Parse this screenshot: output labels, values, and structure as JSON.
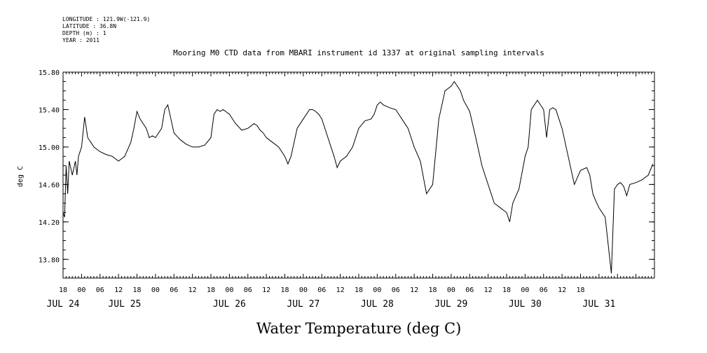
{
  "header": {
    "longitude": "LONGITUDE : 121.9W(-121.9)",
    "latitude": "LATITUDE : 36.8N",
    "depth": "DEPTH (m) : 1",
    "year": "YEAR : 2011"
  },
  "chart_data": {
    "type": "line",
    "title": "Mooring M0 CTD data from MBARI instrument id 1337 at original sampling intervals",
    "xlabel": "Water Temperature (deg C)",
    "ylabel": "deg C",
    "ylim": [
      13.6,
      15.8
    ],
    "yticks": [
      13.8,
      14.2,
      14.6,
      15.0,
      15.4,
      15.8
    ],
    "ytick_labels": [
      "13.80",
      "14.20",
      "14.60",
      "15.00",
      "15.40",
      "15.80"
    ],
    "xlim_hours": [
      18,
      210
    ],
    "hour_ticks": [
      "18",
      "00",
      "06",
      "12",
      "18",
      "00",
      "06",
      "12",
      "18",
      "00",
      "06",
      "12",
      "18",
      "00",
      "06",
      "12",
      "18",
      "00",
      "06",
      "12",
      "18",
      "00",
      "06",
      "12",
      "18",
      "00",
      "06",
      "12",
      "18"
    ],
    "date_labels": [
      {
        "label": "JUL 24",
        "hour": 18
      },
      {
        "label": "JUL 25",
        "hour": 38
      },
      {
        "label": "JUL 26",
        "hour": 72
      },
      {
        "label": "JUL 27",
        "hour": 96
      },
      {
        "label": "JUL 28",
        "hour": 120
      },
      {
        "label": "JUL 29",
        "hour": 144
      },
      {
        "label": "JUL 30",
        "hour": 168
      },
      {
        "label": "JUL 31",
        "hour": 192
      }
    ],
    "grid": false,
    "series": [
      {
        "x": [
          18,
          18.5,
          19,
          19.5,
          20,
          21,
          22,
          22.5,
          23,
          24,
          25,
          26,
          27,
          28,
          30,
          32,
          34,
          36,
          38,
          40,
          41,
          42,
          43,
          44,
          45,
          46,
          47,
          48,
          49,
          50,
          51,
          52,
          53,
          54,
          56,
          58,
          60,
          62,
          64,
          66,
          67,
          68,
          69,
          70,
          72,
          74,
          76,
          78,
          80,
          81,
          82,
          83,
          84,
          86,
          88,
          90,
          91,
          92,
          94,
          96,
          98,
          99,
          100,
          101,
          102,
          104,
          106,
          107,
          108,
          110,
          112,
          113,
          114,
          116,
          118,
          119,
          120,
          121,
          122,
          124,
          126,
          128,
          130,
          131,
          132,
          134,
          136,
          138,
          140,
          142,
          144,
          145,
          146,
          147,
          148,
          150,
          152,
          154,
          156,
          157,
          158,
          160,
          162,
          163,
          164,
          166,
          168,
          169,
          170,
          172,
          174,
          175,
          176,
          177,
          178,
          179,
          180,
          182,
          184,
          186,
          188,
          189,
          190,
          191,
          192,
          194,
          196,
          197,
          198,
          199,
          200,
          201,
          202,
          204,
          206,
          208,
          209.5
        ],
        "y": [
          14.3,
          14.25,
          14.8,
          14.5,
          14.85,
          14.7,
          14.85,
          14.7,
          14.9,
          15.0,
          15.32,
          15.1,
          15.05,
          15.0,
          14.95,
          14.92,
          14.9,
          14.85,
          14.9,
          15.05,
          15.2,
          15.38,
          15.3,
          15.25,
          15.2,
          15.1,
          15.12,
          15.1,
          15.15,
          15.2,
          15.4,
          15.45,
          15.3,
          15.15,
          15.08,
          15.03,
          15.0,
          15.0,
          15.02,
          15.1,
          15.35,
          15.4,
          15.38,
          15.4,
          15.35,
          15.25,
          15.18,
          15.2,
          15.25,
          15.23,
          15.18,
          15.15,
          15.1,
          15.05,
          15.0,
          14.9,
          14.82,
          14.9,
          15.2,
          15.3,
          15.4,
          15.4,
          15.38,
          15.35,
          15.3,
          15.1,
          14.9,
          14.78,
          14.85,
          14.9,
          15.0,
          15.1,
          15.2,
          15.28,
          15.3,
          15.35,
          15.45,
          15.48,
          15.45,
          15.42,
          15.4,
          15.3,
          15.2,
          15.1,
          15.0,
          14.85,
          14.5,
          14.6,
          15.3,
          15.6,
          15.65,
          15.7,
          15.65,
          15.6,
          15.5,
          15.38,
          15.1,
          14.8,
          14.6,
          14.5,
          14.4,
          14.35,
          14.3,
          14.2,
          14.4,
          14.55,
          14.9,
          15.0,
          15.4,
          15.5,
          15.4,
          15.1,
          15.4,
          15.42,
          15.4,
          15.3,
          15.2,
          14.9,
          14.6,
          14.75,
          14.78,
          14.7,
          14.5,
          14.42,
          14.35,
          14.25,
          13.65,
          14.55,
          14.6,
          14.62,
          14.58,
          14.48,
          14.6,
          14.62,
          14.65,
          14.7,
          14.82
        ]
      }
    ]
  }
}
